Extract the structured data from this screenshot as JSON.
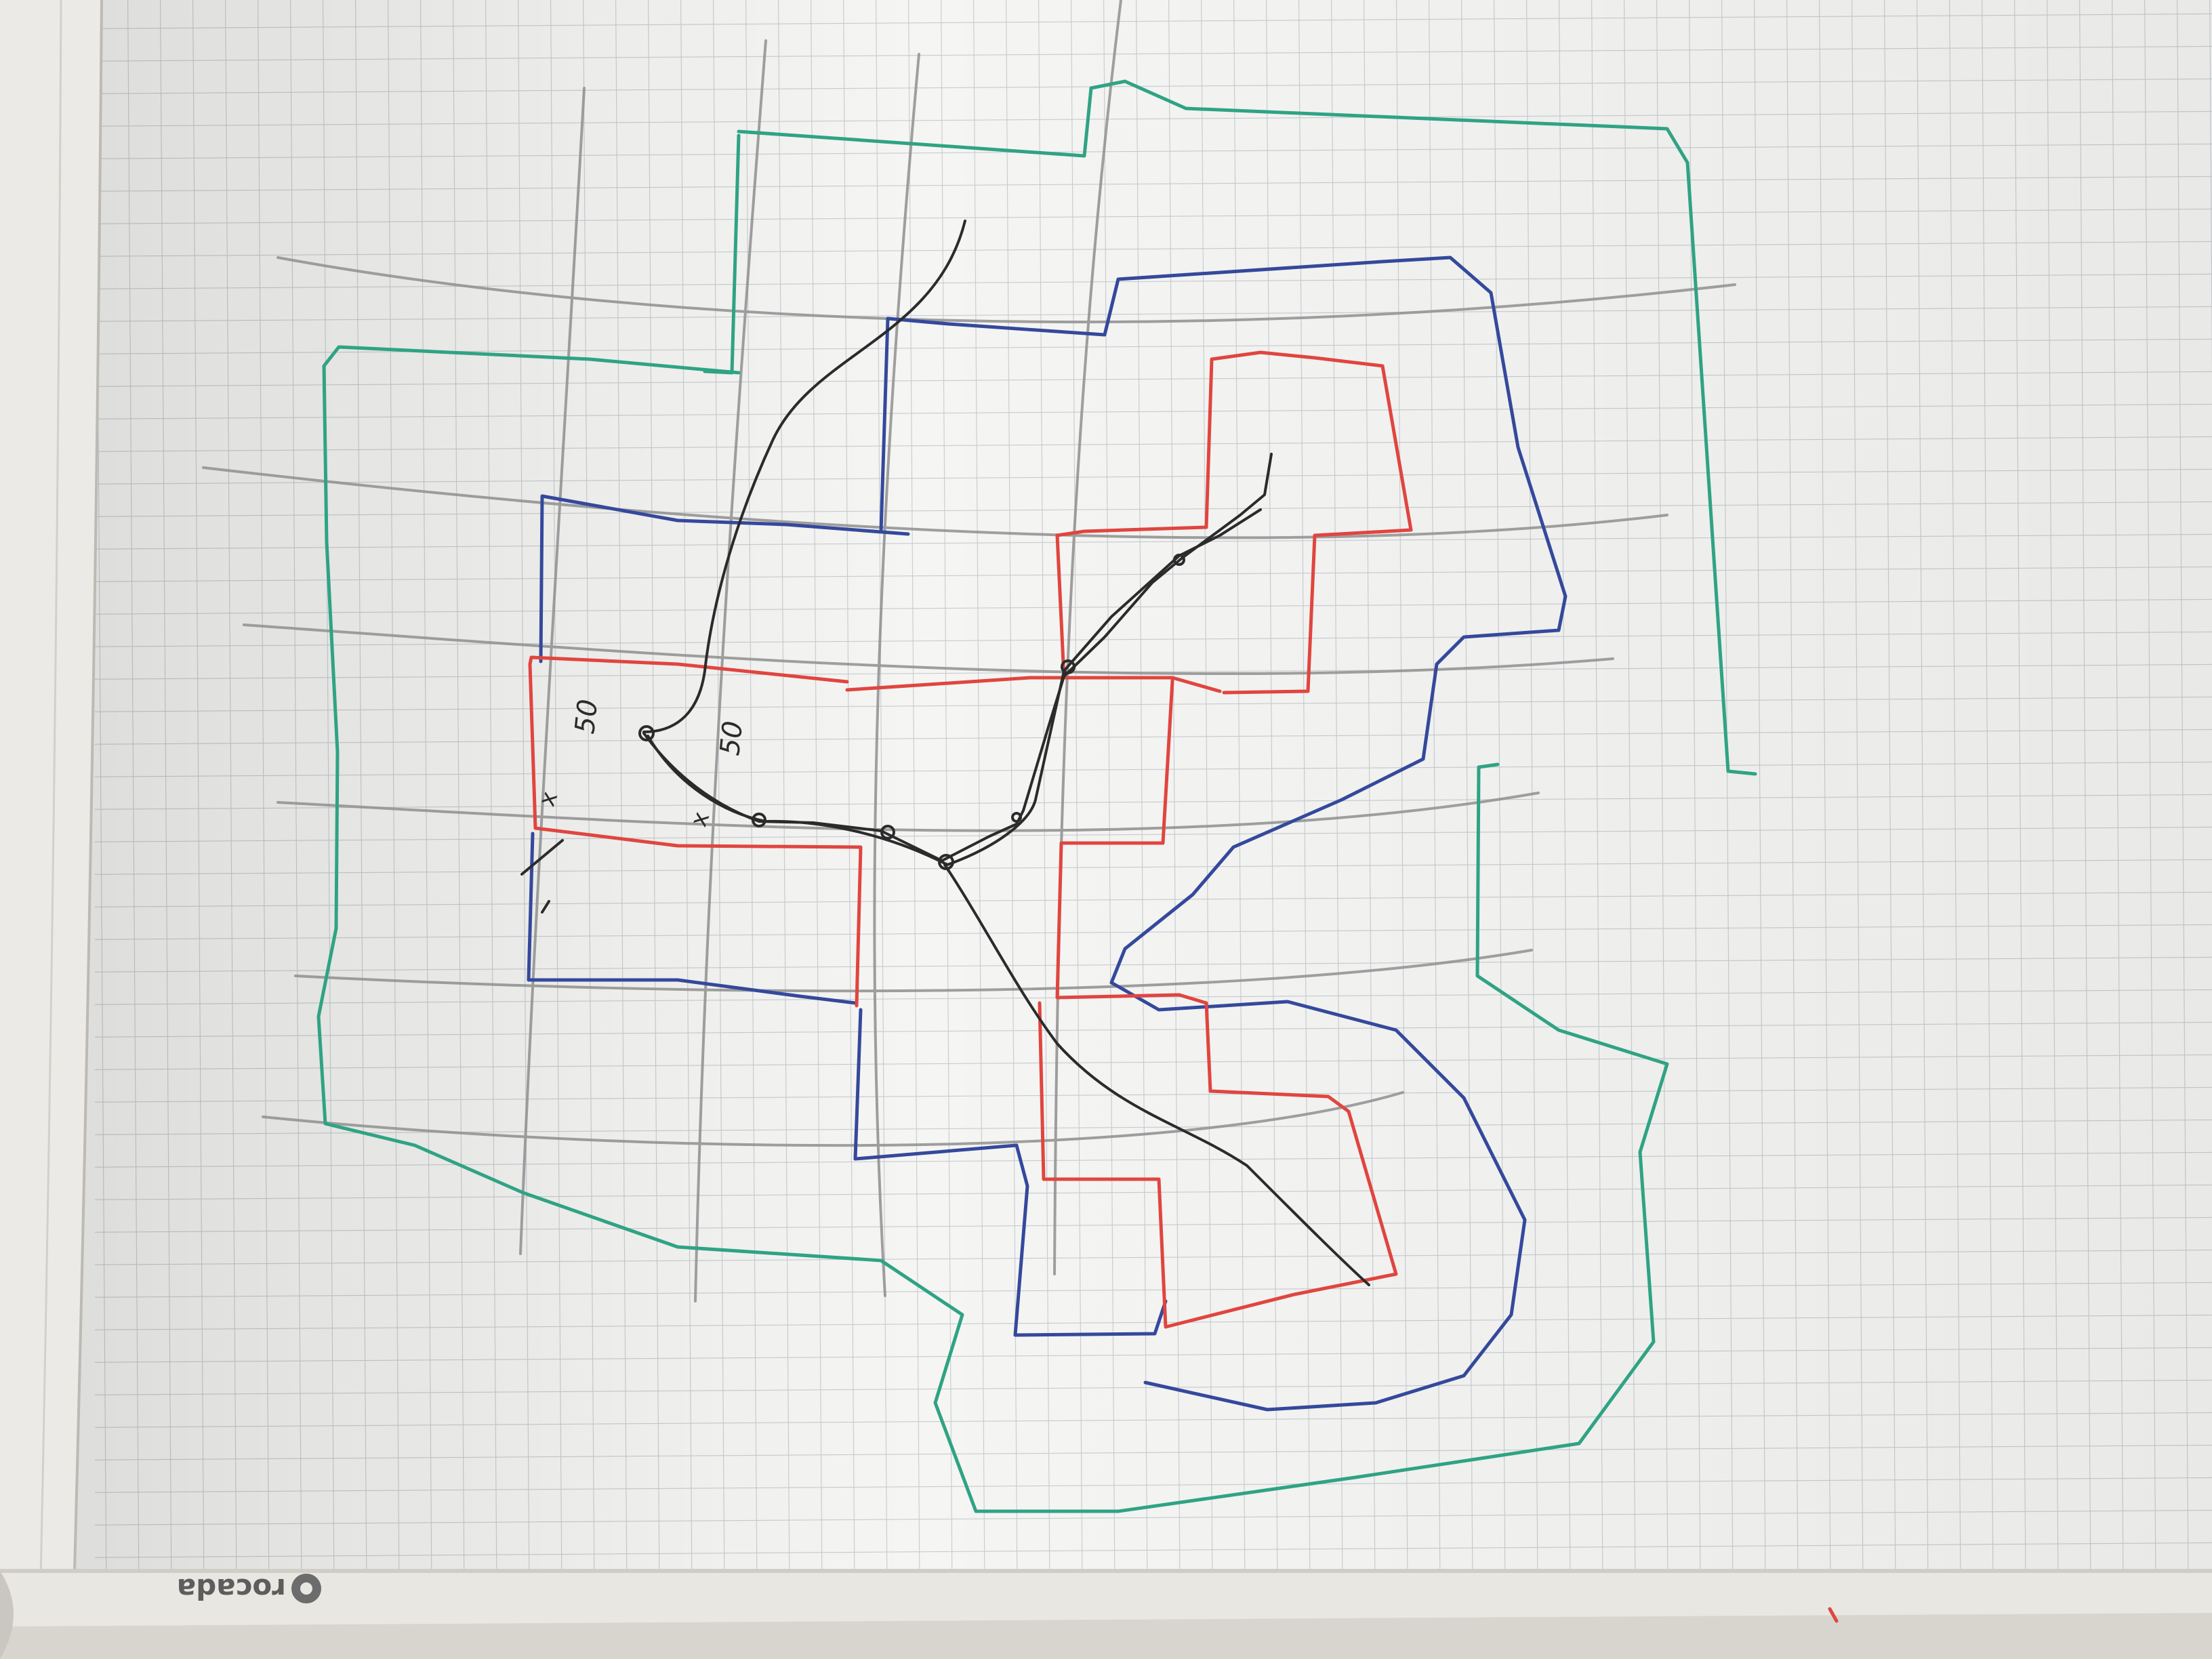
{
  "photo": {
    "subject": "hand-drawn sketch on grid flipchart paper",
    "colors": {
      "paper": "#f4f4f2",
      "grid": "#c9cdd2",
      "pencil": "#8e8e8e",
      "black_marker": "#2b2b2b",
      "red_marker": "#e0453f",
      "blue_marker": "#34499c",
      "teal_marker": "#2fa384",
      "tray": "#e9e8e2"
    }
  },
  "brand": {
    "logo_text": "rocada",
    "logo_mark": "rocada-logo-icon"
  },
  "annotations": {
    "label_a": "50",
    "label_b": "50",
    "mark_a": "x",
    "mark_b": "x"
  }
}
